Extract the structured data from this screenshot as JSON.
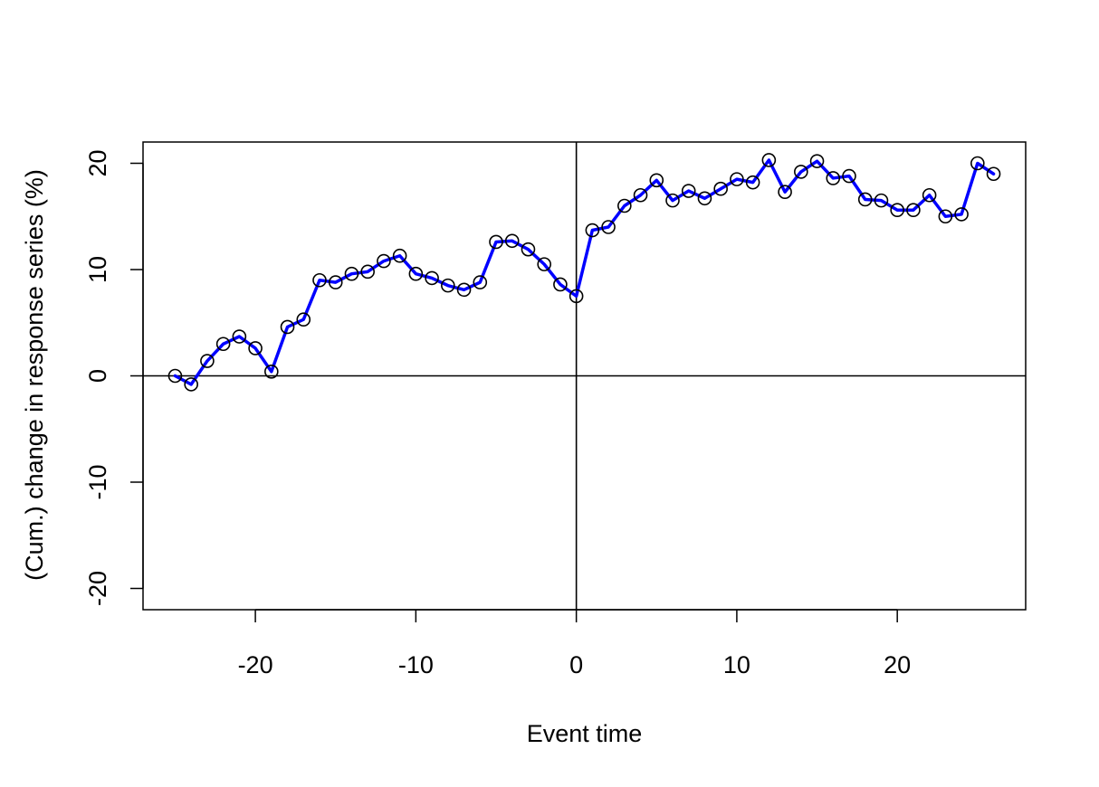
{
  "chart_data": {
    "type": "line",
    "title": "",
    "xlabel": "Event time",
    "ylabel": "(Cum.) change in response series (%)",
    "xlim": [
      -27,
      28
    ],
    "ylim": [
      -22,
      22
    ],
    "xticks": [
      -20,
      -10,
      0,
      10,
      20
    ],
    "xtick_labels": [
      "-20",
      "-10",
      "0",
      "10",
      "20"
    ],
    "yticks": [
      -20,
      -10,
      0,
      10,
      20
    ],
    "ytick_labels": [
      "-20",
      "-10",
      "0",
      "10",
      "20"
    ],
    "reference_lines": {
      "vertical_x": 0,
      "horizontal_y": 0
    },
    "grid": false,
    "legend": "none",
    "series": [
      {
        "line_color": "#0000ff",
        "marker": "open-circle",
        "marker_color": "#000000",
        "x": [
          -25,
          -24,
          -23,
          -22,
          -21,
          -20,
          -19,
          -18,
          -17,
          -16,
          -15,
          -14,
          -13,
          -12,
          -11,
          -10,
          -9,
          -8,
          -7,
          -6,
          -5,
          -4,
          -3,
          -2,
          -1,
          0,
          1,
          2,
          3,
          4,
          5,
          6,
          7,
          8,
          9,
          10,
          11,
          12,
          13,
          14,
          15,
          16,
          17,
          18,
          19,
          20,
          21,
          22,
          23,
          24,
          25,
          26
        ],
        "y": [
          0.0,
          -0.8,
          1.4,
          3.0,
          3.7,
          2.6,
          0.4,
          4.6,
          5.3,
          9.0,
          8.8,
          9.6,
          9.8,
          10.8,
          11.3,
          9.6,
          9.2,
          8.5,
          8.1,
          8.8,
          12.6,
          12.7,
          11.9,
          10.5,
          8.6,
          7.5,
          13.7,
          14.0,
          16.0,
          17.0,
          18.4,
          16.5,
          17.4,
          16.7,
          17.6,
          18.5,
          18.2,
          20.3,
          17.3,
          19.2,
          20.2,
          18.6,
          18.8,
          16.6,
          16.5,
          15.6,
          15.6,
          17.0,
          15.0,
          15.2,
          20.0,
          19.0
        ]
      }
    ]
  }
}
